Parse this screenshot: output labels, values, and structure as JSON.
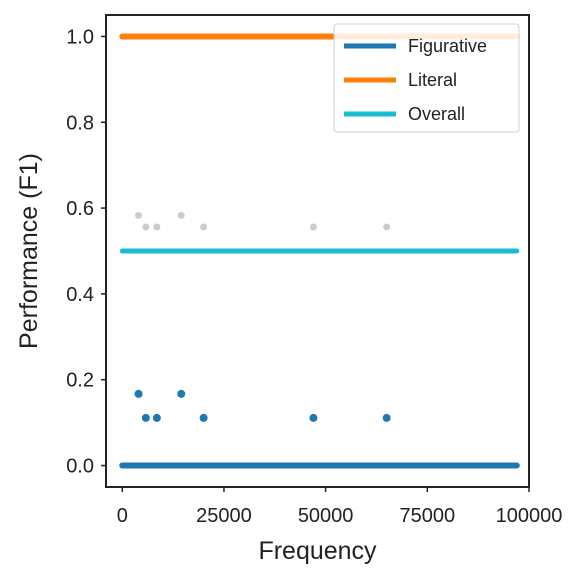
{
  "chart_data": {
    "type": "scatter",
    "title": "",
    "xlabel": "Frequency",
    "ylabel": "Performance (F1)",
    "xlim": [
      -4000,
      100000
    ],
    "ylim": [
      -0.05,
      1.05
    ],
    "xticks": [
      0,
      25000,
      50000,
      75000,
      100000
    ],
    "xtick_labels": [
      "0",
      "25000",
      "50000",
      "75000",
      "100000"
    ],
    "yticks": [
      0.0,
      0.2,
      0.4,
      0.6,
      0.8,
      1.0
    ],
    "ytick_labels": [
      "0.0",
      "0.2",
      "0.4",
      "0.6",
      "0.8",
      "1.0"
    ],
    "grid": false,
    "legend_position": "top-right",
    "x_range": [
      0,
      97000
    ],
    "series": [
      {
        "name": "Figurative",
        "color": "#1f77b4",
        "baseline": 0.0,
        "x": [
          4000,
          5800,
          8500,
          14500,
          20000,
          47000,
          65000
        ],
        "values": [
          0.167,
          0.111,
          0.111,
          0.167,
          0.111,
          0.111,
          0.111
        ]
      },
      {
        "name": "Literal",
        "color": "#ff7f0e",
        "baseline": 1.0,
        "x": [],
        "values": []
      },
      {
        "name": "Overall",
        "color": "#17becf",
        "baseline": 0.5,
        "x": [
          4000,
          5800,
          8500,
          14500,
          20000,
          47000,
          65000
        ],
        "values": [
          0.583,
          0.556,
          0.556,
          0.583,
          0.556,
          0.556,
          0.556
        ],
        "outlier_color": "#cccccc"
      }
    ]
  }
}
